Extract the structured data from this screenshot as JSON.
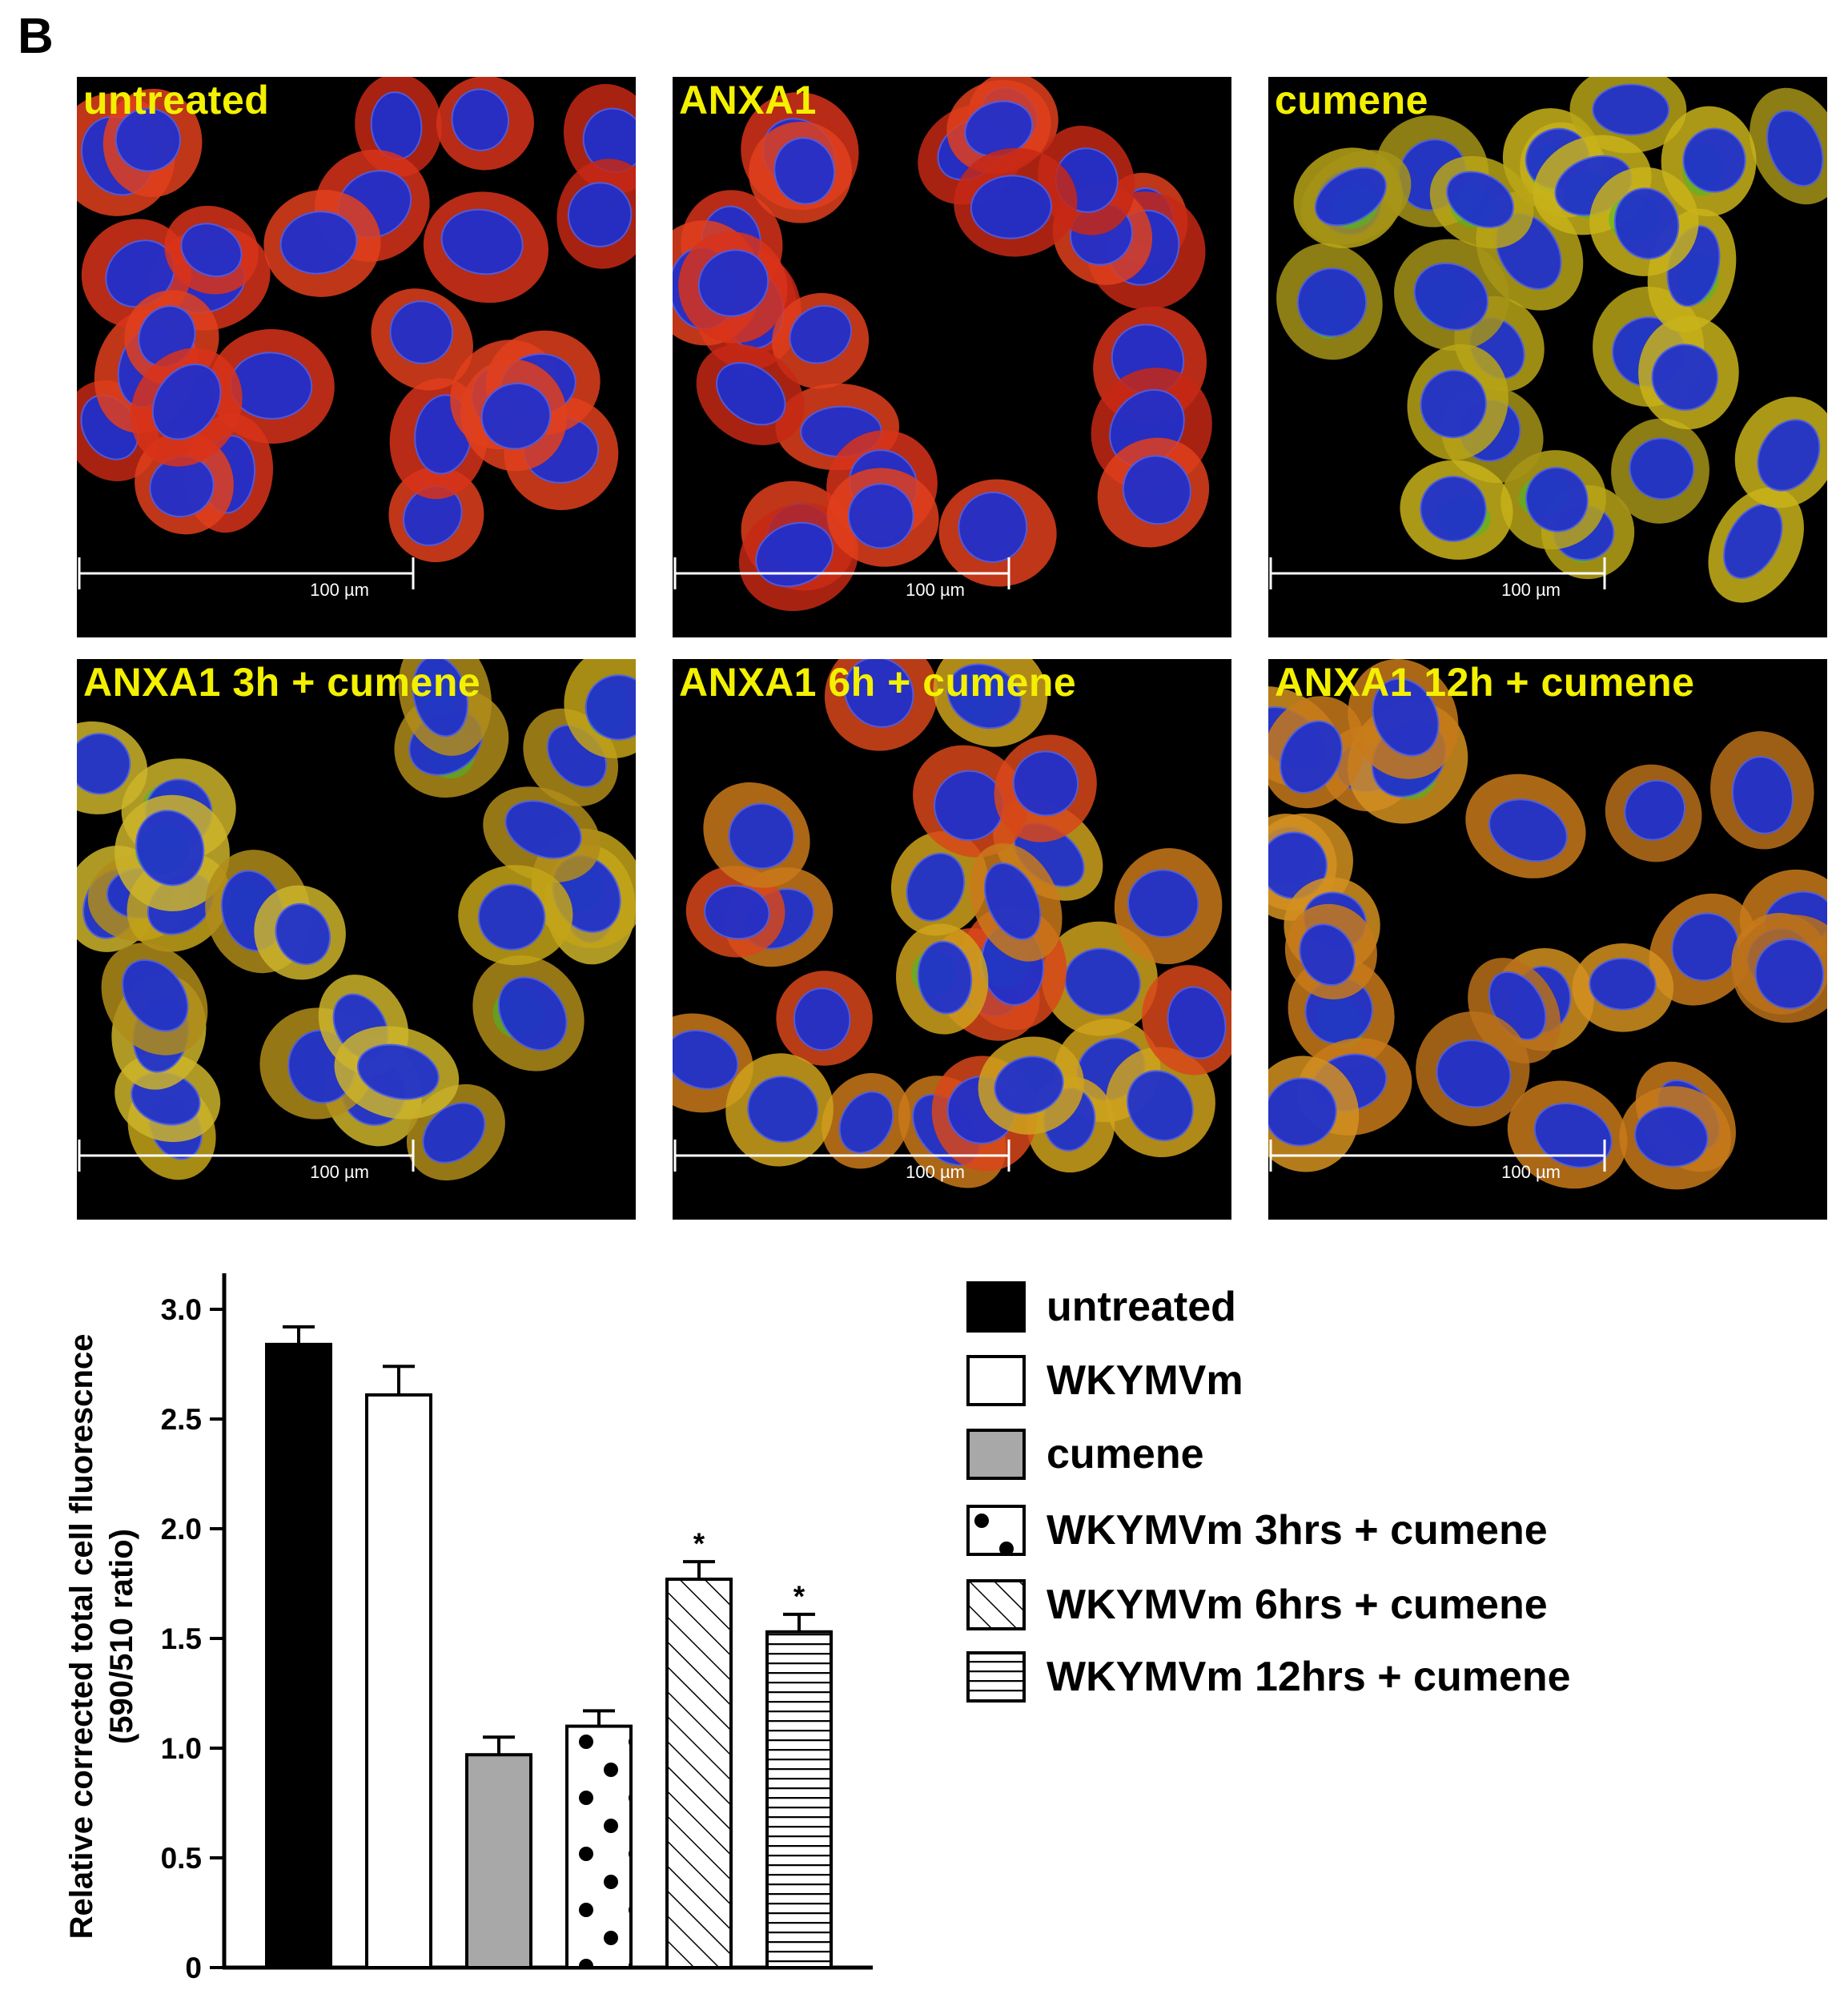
{
  "panel_letter": "B",
  "micrographs": [
    {
      "label": "untreated",
      "scale": "100 µm",
      "style": "red"
    },
    {
      "label": "ANXA1",
      "scale": "100 µm",
      "style": "red"
    },
    {
      "label": "cumene",
      "scale": "100 µm",
      "style": "yellow"
    },
    {
      "label": "ANXA1 3h + cumene",
      "scale": "100 µm",
      "style": "yellowgreen"
    },
    {
      "label": "ANXA1 6h + cumene",
      "scale": "100 µm",
      "style": "mixed"
    },
    {
      "label": "ANXA1 12h + cumene",
      "scale": "100 µm",
      "style": "orange"
    }
  ],
  "colors": {
    "label": "#f3f000",
    "nucleus": "#1c2fd0",
    "red_cyto": "#d8321a",
    "yellow_cyto": "#c8b214",
    "green": "#3fbf2a"
  },
  "chart_data": {
    "type": "bar",
    "ylabel": "Relative corrected total cell fluorescnce (590/510 ratio)",
    "ylabel_lines": [
      "Relative corrected total cell fluorescnce",
      "(590/510 ratio)"
    ],
    "ylim": [
      0,
      3.0
    ],
    "yticks": [
      0,
      0.5,
      1.0,
      1.5,
      2.0,
      2.5,
      3.0
    ],
    "ytick_labels": [
      "0",
      "0.5",
      "1.0",
      "1.5",
      "2.0",
      "2.5",
      "3.0"
    ],
    "categories": [
      "untreated",
      "WKYMVm",
      "cumene",
      "WKYMVm 3hrs + cumene",
      "WKYMVm 6hrs + cumene",
      "WKYMVm 12hrs + cumene"
    ],
    "values": [
      2.84,
      2.61,
      0.97,
      1.1,
      1.77,
      1.53
    ],
    "errors": [
      0.08,
      0.13,
      0.08,
      0.07,
      0.08,
      0.08
    ],
    "significance": [
      "",
      "",
      "",
      "",
      "*",
      "*"
    ],
    "fills": [
      "black",
      "white",
      "gray",
      "dots",
      "diagonal",
      "horizontal"
    ],
    "legend": [
      {
        "label": "untreated",
        "fill": "black"
      },
      {
        "label": "WKYMVm",
        "fill": "white"
      },
      {
        "label": "cumene",
        "fill": "gray"
      },
      {
        "label": "WKYMVm 3hrs + cumene",
        "fill": "dots"
      },
      {
        "label": "WKYMVm 6hrs + cumene",
        "fill": "diagonal"
      },
      {
        "label": "WKYMVm 12hrs + cumene",
        "fill": "horizontal"
      }
    ]
  }
}
